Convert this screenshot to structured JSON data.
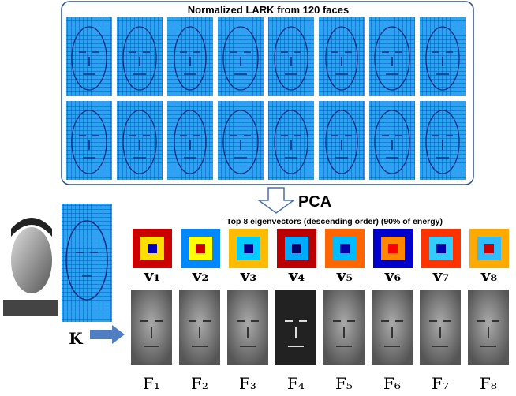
{
  "header": {
    "title": "Normalized LARK from 120 faces"
  },
  "pca": {
    "label": "PCA",
    "subtitle": "Top 8 eigenvectors (descending order) (90% of energy)"
  },
  "input": {
    "label": "K"
  },
  "eigenvectors": [
    "v₁",
    "v₂",
    "v₃",
    "v₄",
    "v₅",
    "v₆",
    "v₇",
    "v₈"
  ],
  "features": [
    "F₁",
    "F₂",
    "F₃",
    "F₄",
    "F₅",
    "F₆",
    "F₇",
    "F₈"
  ]
}
